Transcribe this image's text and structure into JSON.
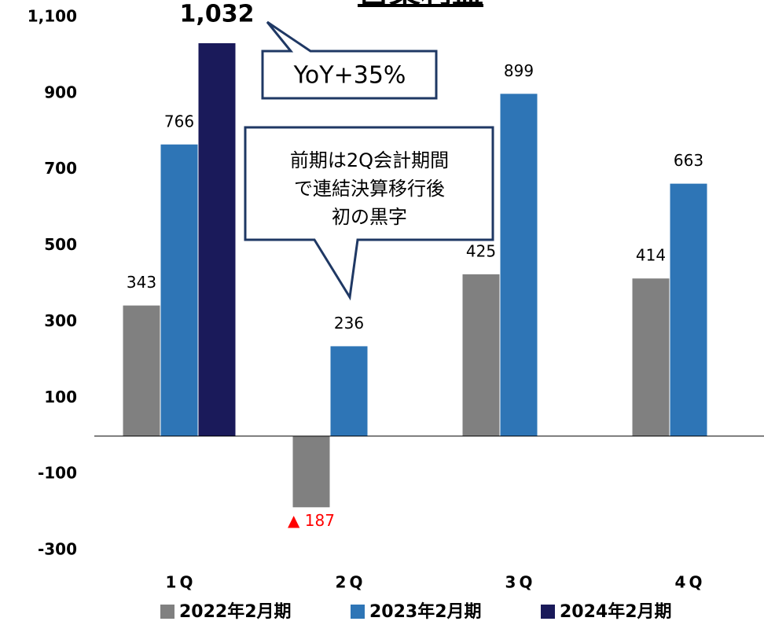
{
  "chart_data": {
    "type": "bar",
    "title": "営業利益",
    "categories": [
      "1Q",
      "2Q",
      "3Q",
      "4Q"
    ],
    "series": [
      {
        "name": "2022年2月期",
        "color": "#808080",
        "values": [
          343,
          -187,
          425,
          414
        ],
        "value_labels": [
          "343",
          "▲ 187",
          "425",
          "414"
        ]
      },
      {
        "name": "2023年2月期",
        "color": "#2e75b6",
        "values": [
          766,
          236,
          899,
          663
        ]
      },
      {
        "name": "2024年2月期",
        "color": "#1a1a5a",
        "values": [
          1032,
          null,
          null,
          null
        ],
        "value_labels": [
          "1,032",
          null,
          null,
          null
        ]
      }
    ],
    "negative_label_color": "#ff0000",
    "ylim": [
      -300,
      1100
    ],
    "yticks": [
      -300,
      -100,
      100,
      300,
      500,
      700,
      900,
      {
        "value": 1100,
        "label": "1,100"
      }
    ],
    "grid": false,
    "legend": "bottom",
    "annotations": [
      "YoY+35%",
      [
        "前期は2Q会計期間",
        "で連結決算移行後",
        "初の黒字"
      ]
    ]
  }
}
